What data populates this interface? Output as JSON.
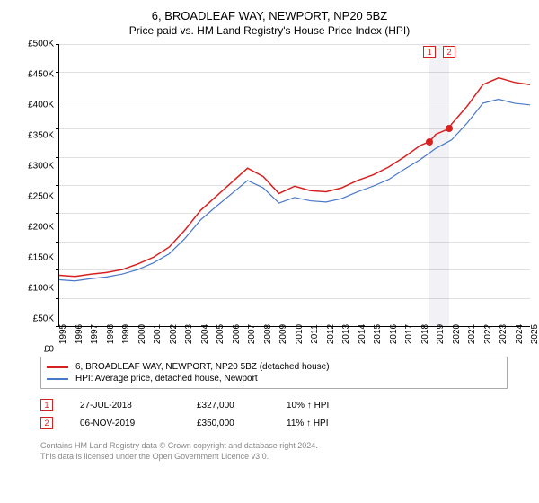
{
  "title": "6, BROADLEAF WAY, NEWPORT, NP20 5BZ",
  "subtitle": "Price paid vs. HM Land Registry's House Price Index (HPI)",
  "chart": {
    "type": "line",
    "background_color": "#ffffff",
    "grid_color": "#cccccc",
    "ylim": [
      0,
      500000
    ],
    "ytick_step": 50000,
    "ytick_labels": [
      "£0",
      "£50K",
      "£100K",
      "£150K",
      "£200K",
      "£250K",
      "£300K",
      "£350K",
      "£400K",
      "£450K",
      "£500K"
    ],
    "xlim": [
      1995,
      2025
    ],
    "xtick_step": 1,
    "xtick_labels": [
      "1995",
      "1996",
      "1997",
      "1998",
      "1999",
      "2000",
      "2001",
      "2002",
      "2003",
      "2004",
      "2005",
      "2006",
      "2007",
      "2008",
      "2009",
      "2010",
      "2011",
      "2012",
      "2013",
      "2014",
      "2015",
      "2016",
      "2017",
      "2018",
      "2019",
      "2020",
      "2021",
      "2022",
      "2023",
      "2024",
      "2025"
    ],
    "highlight_band": {
      "start": 2018.6,
      "end": 2019.85,
      "color": "#e8e8f0"
    },
    "series": [
      {
        "name": "property",
        "label": "6, BROADLEAF WAY, NEWPORT, NP20 5BZ (detached house)",
        "color": "#d92020",
        "line_width": 1.5,
        "data": [
          [
            1995,
            90000
          ],
          [
            1996,
            88000
          ],
          [
            1997,
            92000
          ],
          [
            1998,
            95000
          ],
          [
            1999,
            100000
          ],
          [
            2000,
            110000
          ],
          [
            2001,
            122000
          ],
          [
            2002,
            140000
          ],
          [
            2003,
            170000
          ],
          [
            2004,
            205000
          ],
          [
            2005,
            230000
          ],
          [
            2006,
            255000
          ],
          [
            2007,
            280000
          ],
          [
            2008,
            265000
          ],
          [
            2009,
            235000
          ],
          [
            2010,
            248000
          ],
          [
            2011,
            240000
          ],
          [
            2012,
            238000
          ],
          [
            2013,
            245000
          ],
          [
            2014,
            258000
          ],
          [
            2015,
            268000
          ],
          [
            2016,
            282000
          ],
          [
            2017,
            300000
          ],
          [
            2018,
            320000
          ],
          [
            2018.6,
            327000
          ],
          [
            2019,
            340000
          ],
          [
            2019.85,
            350000
          ],
          [
            2020,
            358000
          ],
          [
            2021,
            390000
          ],
          [
            2022,
            428000
          ],
          [
            2023,
            440000
          ],
          [
            2024,
            432000
          ],
          [
            2025,
            428000
          ]
        ]
      },
      {
        "name": "hpi",
        "label": "HPI: Average price, detached house, Newport",
        "color": "#4878c8",
        "line_width": 1.2,
        "data": [
          [
            1995,
            82000
          ],
          [
            1996,
            80000
          ],
          [
            1997,
            84000
          ],
          [
            1998,
            87000
          ],
          [
            1999,
            92000
          ],
          [
            2000,
            100000
          ],
          [
            2001,
            112000
          ],
          [
            2002,
            128000
          ],
          [
            2003,
            155000
          ],
          [
            2004,
            188000
          ],
          [
            2005,
            212000
          ],
          [
            2006,
            235000
          ],
          [
            2007,
            258000
          ],
          [
            2008,
            245000
          ],
          [
            2009,
            218000
          ],
          [
            2010,
            228000
          ],
          [
            2011,
            222000
          ],
          [
            2012,
            220000
          ],
          [
            2013,
            226000
          ],
          [
            2014,
            238000
          ],
          [
            2015,
            248000
          ],
          [
            2016,
            260000
          ],
          [
            2017,
            278000
          ],
          [
            2018,
            295000
          ],
          [
            2019,
            315000
          ],
          [
            2020,
            330000
          ],
          [
            2021,
            360000
          ],
          [
            2022,
            395000
          ],
          [
            2023,
            402000
          ],
          [
            2024,
            395000
          ],
          [
            2025,
            392000
          ]
        ]
      }
    ],
    "markers": [
      {
        "num": "1",
        "x": 2018.6,
        "y": 327000,
        "color": "#d92020"
      },
      {
        "num": "2",
        "x": 2019.85,
        "y": 350000,
        "color": "#d92020"
      }
    ]
  },
  "legend": {
    "items": [
      {
        "color": "#d92020",
        "label": "6, BROADLEAF WAY, NEWPORT, NP20 5BZ (detached house)"
      },
      {
        "color": "#4878c8",
        "label": "HPI: Average price, detached house, Newport"
      }
    ]
  },
  "transactions": [
    {
      "num": "1",
      "color": "#d92020",
      "date": "27-JUL-2018",
      "price": "£327,000",
      "pct": "10% ↑ HPI"
    },
    {
      "num": "2",
      "color": "#d92020",
      "date": "06-NOV-2019",
      "price": "£350,000",
      "pct": "11% ↑ HPI"
    }
  ],
  "footer_line1": "Contains HM Land Registry data © Crown copyright and database right 2024.",
  "footer_line2": "This data is licensed under the Open Government Licence v3.0."
}
